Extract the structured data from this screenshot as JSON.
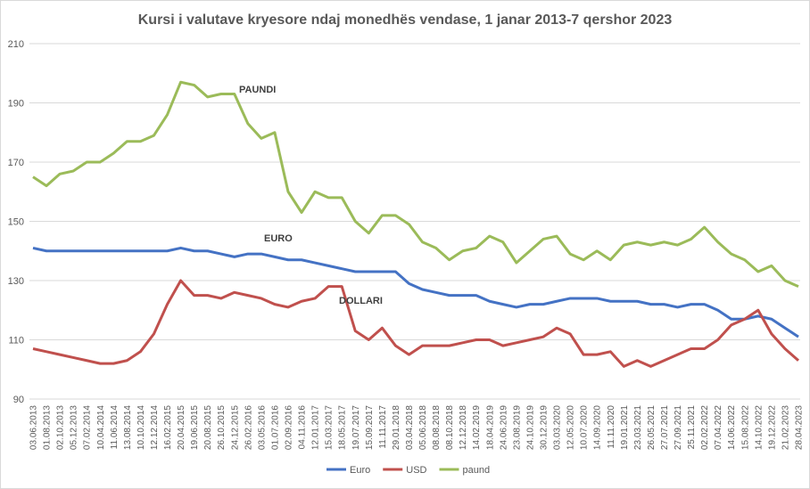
{
  "chart_data": {
    "type": "line",
    "title": "Kursi i valutave kryesore ndaj monedhës vendase, 1 janar 2013-7 qershor 2023",
    "categories": [
      "03.06.2013",
      "01.08.2013",
      "02.10.2013",
      "05.12.2013",
      "07.02.2014",
      "10.04.2014",
      "11.06.2014",
      "13.08.2014",
      "10.10.2014",
      "12.12.2014",
      "16.02.2015",
      "20.04.2015",
      "19.06.2015",
      "20.08.2015",
      "26.10.2015",
      "24.12.2015",
      "26.02.2016",
      "03.05.2016",
      "01.07.2016",
      "02.09.2016",
      "04.11.2016",
      "12.01.2017",
      "15.03.2017",
      "18.05.2017",
      "19.07.2017",
      "15.09.2017",
      "11.11.2017",
      "29.01.2018",
      "03.04.2018",
      "05.06.2018",
      "08.08.2018",
      "08.10.2018",
      "12.12.2018",
      "14.02.2019",
      "18.04.2019",
      "24.06.2019",
      "23.08.2019",
      "24.10.2019",
      "30.12.2019",
      "03.03.2020",
      "12.05.2020",
      "10.07.2020",
      "14.09.2020",
      "11.11.2020",
      "19.01.2021",
      "23.03.2021",
      "26.05.2021",
      "27.07.2021",
      "27.09.2021",
      "25.11.2021",
      "02.02.2022",
      "07.04.2022",
      "14.06.2022",
      "15.08.2022",
      "14.10.2022",
      "19.12.2022",
      "21.02.2023",
      "28.04.2023"
    ],
    "series": [
      {
        "name": "Euro",
        "color": "#4472c4",
        "values": [
          141,
          140,
          140,
          140,
          140,
          140,
          140,
          140,
          140,
          140,
          140,
          141,
          140,
          140,
          139,
          138,
          139,
          139,
          138,
          137,
          137,
          136,
          135,
          134,
          133,
          133,
          133,
          133,
          129,
          127,
          126,
          125,
          125,
          125,
          123,
          122,
          121,
          122,
          122,
          123,
          124,
          124,
          124,
          123,
          123,
          123,
          122,
          122,
          121,
          122,
          122,
          120,
          117,
          117,
          118,
          117,
          114,
          111
        ]
      },
      {
        "name": "USD",
        "color": "#c0504d",
        "values": [
          107,
          106,
          105,
          104,
          103,
          102,
          102,
          103,
          106,
          112,
          122,
          130,
          125,
          125,
          124,
          126,
          125,
          124,
          122,
          121,
          123,
          124,
          128,
          128,
          113,
          110,
          114,
          108,
          105,
          108,
          108,
          108,
          109,
          110,
          110,
          108,
          109,
          110,
          111,
          114,
          112,
          105,
          105,
          106,
          101,
          103,
          101,
          103,
          105,
          107,
          107,
          110,
          115,
          117,
          120,
          112,
          107,
          103
        ]
      },
      {
        "name": "paund",
        "color": "#9bbb59",
        "values": [
          165,
          162,
          166,
          167,
          170,
          170,
          173,
          177,
          177,
          179,
          186,
          197,
          196,
          192,
          193,
          193,
          183,
          178,
          180,
          160,
          153,
          160,
          158,
          158,
          150,
          146,
          152,
          152,
          149,
          143,
          141,
          137,
          140,
          141,
          145,
          143,
          136,
          140,
          144,
          145,
          139,
          137,
          140,
          137,
          142,
          143,
          142,
          143,
          142,
          144,
          148,
          143,
          139,
          137,
          133,
          135,
          130,
          128
        ]
      }
    ],
    "annotations": [
      "PAUNDI",
      "EURO",
      "DOLLARI"
    ],
    "ylim": [
      90,
      210
    ],
    "yticks": [
      90,
      110,
      130,
      150,
      170,
      190,
      210
    ],
    "grid": true,
    "legend": "bottom"
  }
}
